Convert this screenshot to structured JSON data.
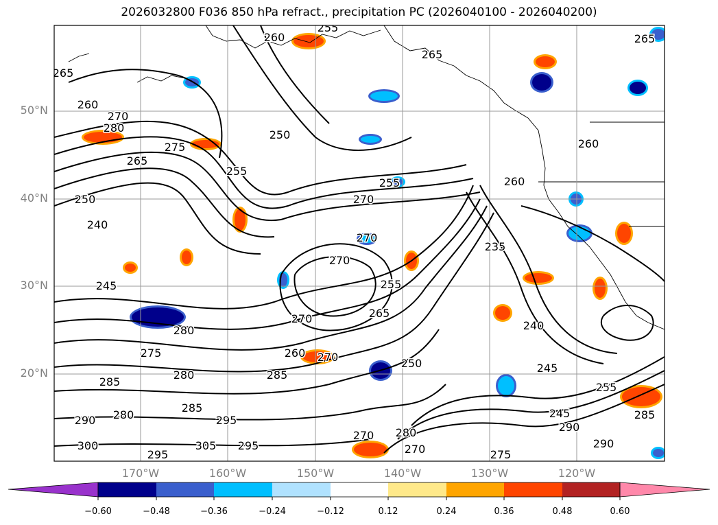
{
  "title": "2026032800 F036 850 hPa refract., precipitation PC (2026040100 - 2026040200)",
  "lat_labels": [
    "50°N",
    "40°N",
    "30°N",
    "20°N"
  ],
  "lon_labels": [
    "170°W",
    "160°W",
    "150°W",
    "140°W",
    "130°W",
    "120°W"
  ],
  "colorbar": {
    "tick_labels": [
      "−0.60",
      "−0.48",
      "−0.36",
      "−0.24",
      "−0.12",
      "0.12",
      "0.24",
      "0.36",
      "0.48",
      "0.60"
    ],
    "colors": [
      "#9932cc",
      "#00008b",
      "#3a5fcd",
      "#00bfff",
      "#b0e2ff",
      "#ffffff",
      "#ffe98a",
      "#ffa500",
      "#ff4500",
      "#b22222",
      "#ff88aa"
    ]
  },
  "contour_labels": [
    {
      "text": "255"
    },
    {
      "text": "260"
    },
    {
      "text": "265"
    },
    {
      "text": "265"
    },
    {
      "text": "260"
    },
    {
      "text": "270"
    },
    {
      "text": "280"
    },
    {
      "text": "275"
    },
    {
      "text": "250"
    },
    {
      "text": "265"
    },
    {
      "text": "255"
    },
    {
      "text": "250"
    },
    {
      "text": "240"
    },
    {
      "text": "255"
    },
    {
      "text": "270"
    },
    {
      "text": "260"
    },
    {
      "text": "270"
    },
    {
      "text": "270"
    },
    {
      "text": "235"
    },
    {
      "text": "245"
    },
    {
      "text": "270"
    },
    {
      "text": "255"
    },
    {
      "text": "265"
    },
    {
      "text": "240"
    },
    {
      "text": "280"
    },
    {
      "text": "275"
    },
    {
      "text": "280"
    },
    {
      "text": "285"
    },
    {
      "text": "260"
    },
    {
      "text": "270"
    },
    {
      "text": "285"
    },
    {
      "text": "250"
    },
    {
      "text": "245"
    },
    {
      "text": "280"
    },
    {
      "text": "285"
    },
    {
      "text": "295"
    },
    {
      "text": "300"
    },
    {
      "text": "305"
    },
    {
      "text": "295"
    },
    {
      "text": "295"
    },
    {
      "text": "270"
    },
    {
      "text": "280"
    },
    {
      "text": "270"
    },
    {
      "text": "275"
    },
    {
      "text": "245"
    },
    {
      "text": "290"
    },
    {
      "text": "290"
    },
    {
      "text": "255"
    },
    {
      "text": "285"
    },
    {
      "text": "290"
    },
    {
      "text": "260"
    },
    {
      "text": "265"
    }
  ]
}
